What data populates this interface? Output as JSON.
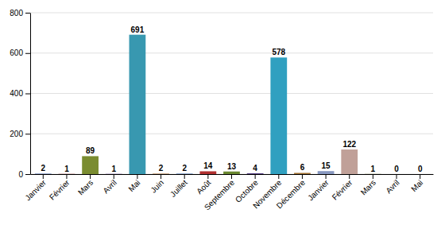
{
  "chart_data": {
    "type": "bar",
    "categories": [
      "Janvier",
      "Février",
      "Mars",
      "Avril",
      "Mai",
      "Juin",
      "Juillet",
      "Août",
      "Septembre",
      "Octobre",
      "Novembre",
      "Décembre",
      "Janvier",
      "Février",
      "Mars",
      "Avril",
      "Mai"
    ],
    "values": [
      2,
      1,
      89,
      1,
      691,
      2,
      2,
      14,
      13,
      4,
      578,
      6,
      15,
      122,
      1,
      0,
      0
    ],
    "colors": [
      "#4060A8",
      "#A03030",
      "#7A8C30",
      "#603890",
      "#3898B0",
      "#A06020",
      "#3060A8",
      "#B03030",
      "#6A8830",
      "#503880",
      "#30A0C0",
      "#A07030",
      "#8898C0",
      "#C0A098",
      "#909868",
      "#706888",
      "#8898A8"
    ],
    "ylim": [
      0,
      800
    ],
    "yticks": [
      0,
      200,
      400,
      600,
      800
    ],
    "grid": true,
    "data_labels": true
  }
}
